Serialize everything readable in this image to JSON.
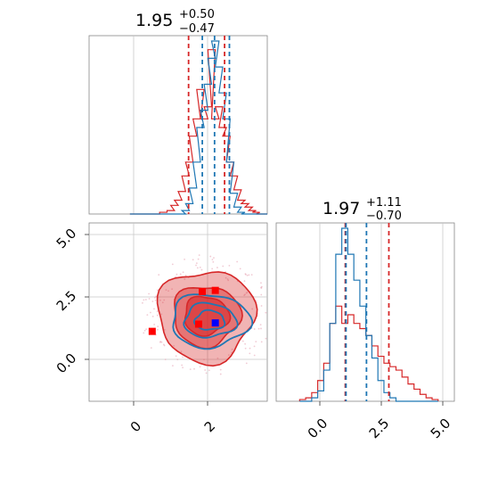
{
  "chart_data": [
    {
      "type": "line",
      "panel": "top-left histogram",
      "title_value": "1.95",
      "title_plus": "+0.50",
      "title_minus": "−0.47",
      "xlim": [
        -1.2,
        3.6
      ],
      "x": [
        0.0,
        0.2,
        0.4,
        0.6,
        0.8,
        1.0,
        1.1,
        1.2,
        1.3,
        1.4,
        1.5,
        1.6,
        1.7,
        1.8,
        1.9,
        2.0,
        2.1,
        2.2,
        2.3,
        2.4,
        2.5,
        2.6,
        2.7,
        2.8,
        2.9,
        3.0,
        3.1,
        3.2,
        3.3,
        3.4,
        3.5
      ],
      "series": [
        {
          "color": "#d62728",
          "values": [
            0,
            0,
            0,
            0,
            0.01,
            0.02,
            0.05,
            0.08,
            0.13,
            0.22,
            0.3,
            0.45,
            0.55,
            0.72,
            0.55,
            0.62,
            0.95,
            0.55,
            0.62,
            0.5,
            0.45,
            0.3,
            0.22,
            0.14,
            0.08,
            0.06,
            0.04,
            0.02,
            0.01,
            0,
            0
          ]
        },
        {
          "color": "#1f77b4",
          "values": [
            0,
            0,
            0,
            0,
            0,
            0,
            0,
            0,
            0,
            0.02,
            0.06,
            0.15,
            0.3,
            0.5,
            0.6,
            0.75,
            0.9,
            1.0,
            0.85,
            0.7,
            0.55,
            0.3,
            0.12,
            0.04,
            0.01,
            0,
            0,
            0,
            0,
            0,
            0
          ]
        }
      ],
      "vlines": [
        {
          "x": 1.48,
          "color": "#d62728"
        },
        {
          "x": 2.45,
          "color": "#d62728"
        },
        {
          "x": 1.85,
          "color": "#1f77b4"
        },
        {
          "x": 2.18,
          "color": "#1f77b4"
        },
        {
          "x": 2.58,
          "color": "#1f77b4"
        }
      ]
    },
    {
      "type": "scatter",
      "panel": "bottom-left 2D contour",
      "xlim": [
        -1.2,
        3.6
      ],
      "ylim": [
        -1.6,
        5.8
      ],
      "xticks": [
        "0",
        "2"
      ],
      "yticks": [
        "0.0",
        "2.5",
        "5.0"
      ],
      "contours": [
        {
          "color": "#d62728",
          "cx": 1.95,
          "cy": 1.95,
          "rx": [
            1.3,
            0.9,
            0.6
          ],
          "ry": [
            1.9,
            1.25,
            0.8
          ]
        },
        {
          "color": "#1f77b4",
          "cx": 2.05,
          "cy": 1.75,
          "rx": [
            1.05,
            0.7,
            0.4
          ],
          "ry": [
            1.1,
            0.7,
            0.4
          ]
        }
      ],
      "markers": [
        {
          "x": 0.5,
          "y": 1.3,
          "color": "#ff0000"
        },
        {
          "x": 1.75,
          "y": 1.6,
          "color": "#ff0000"
        },
        {
          "x": 1.85,
          "y": 2.95,
          "color": "#ff0000"
        },
        {
          "x": 2.2,
          "y": 3.0,
          "color": "#ff0000"
        },
        {
          "x": 2.2,
          "y": 1.65,
          "color": "#0000ff"
        }
      ]
    },
    {
      "type": "line",
      "panel": "bottom-right histogram",
      "title_value": "1.97",
      "title_plus": "+1.11",
      "title_minus": "−0.70",
      "xlim": [
        -1.6,
        5.8
      ],
      "xticks": [
        "0.0",
        "2.5",
        "5.0"
      ],
      "x": [
        -0.5,
        -0.25,
        0,
        0.25,
        0.5,
        0.75,
        1.0,
        1.25,
        1.5,
        1.75,
        2.0,
        2.25,
        2.5,
        2.75,
        3.0,
        3.25,
        3.5,
        3.75,
        4.0,
        4.25,
        4.5,
        4.75,
        5.0
      ],
      "series": [
        {
          "color": "#d62728",
          "values": [
            0.01,
            0.02,
            0.05,
            0.12,
            0.22,
            0.45,
            0.55,
            0.45,
            0.5,
            0.45,
            0.42,
            0.38,
            0.32,
            0.26,
            0.22,
            0.2,
            0.18,
            0.14,
            0.1,
            0.07,
            0.04,
            0.02,
            0.01
          ]
        },
        {
          "color": "#1f77b4",
          "values": [
            0,
            0,
            0.02,
            0.06,
            0.18,
            0.45,
            0.85,
            1.0,
            0.85,
            0.7,
            0.55,
            0.38,
            0.25,
            0.12,
            0.05,
            0.02,
            0,
            0,
            0,
            0,
            0,
            0,
            0
          ]
        }
      ],
      "vlines": [
        {
          "x": 1.27,
          "color": "#d62728"
        },
        {
          "x": 3.08,
          "color": "#d62728"
        },
        {
          "x": 1.3,
          "color": "#1f77b4"
        },
        {
          "x": 2.15,
          "color": "#1f77b4"
        }
      ]
    }
  ]
}
